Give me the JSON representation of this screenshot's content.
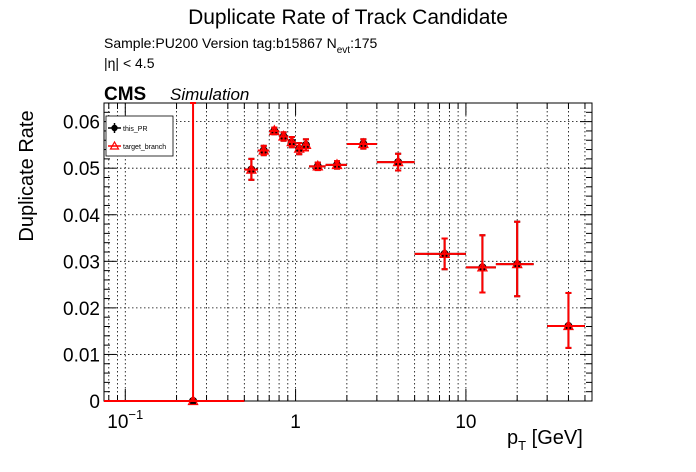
{
  "chart_data": {
    "type": "scatter",
    "title": "Duplicate Rate of Track Candidate",
    "subtitle": {
      "sample": "Sample:PU200   Version tag:b15867  N",
      "sub": "evt",
      "tail": ":175"
    },
    "eta_cut": "|η| < 4.5",
    "cms_label": "CMS",
    "cms_sublabel": "Simulation",
    "xlabel": {
      "main": "p",
      "sub": "T",
      "tail": " [GeV]"
    },
    "ylabel": "Duplicate Rate",
    "x_scale": "log",
    "xlim": [
      0.075,
      55
    ],
    "ylim": [
      0,
      0.064
    ],
    "grid": true,
    "legend_placement": "top-left",
    "x_ticks": [
      {
        "value": 0.1,
        "base": "10",
        "exp": "−1"
      },
      {
        "value": 1,
        "base": "1",
        "exp": ""
      },
      {
        "value": 10,
        "base": "10",
        "exp": ""
      }
    ],
    "y_ticks": [
      "0",
      "0.01",
      "0.02",
      "0.03",
      "0.04",
      "0.05",
      "0.06"
    ],
    "y_tick_values": [
      0,
      0.01,
      0.02,
      0.03,
      0.04,
      0.05,
      0.06
    ],
    "series": [
      {
        "name": "this_PR",
        "color": "#000000",
        "marker": "circle",
        "points": [
          {
            "x": 0.25,
            "xlo": 0.0,
            "xhi": 0.5,
            "y": 0.0,
            "ylo": 0.0,
            "yhi": 0.0
          },
          {
            "x": 0.55,
            "xlo": 0.5,
            "xhi": 0.6,
            "y": 0.0497,
            "ylo": 0.0475,
            "yhi": 0.052
          },
          {
            "x": 0.65,
            "xlo": 0.6,
            "xhi": 0.7,
            "y": 0.0538,
            "ylo": 0.0528,
            "yhi": 0.0548
          },
          {
            "x": 0.75,
            "xlo": 0.7,
            "xhi": 0.8,
            "y": 0.058,
            "ylo": 0.0573,
            "yhi": 0.0587
          },
          {
            "x": 0.85,
            "xlo": 0.8,
            "xhi": 0.9,
            "y": 0.0568,
            "ylo": 0.0559,
            "yhi": 0.0577
          },
          {
            "x": 0.95,
            "xlo": 0.9,
            "xhi": 1.0,
            "y": 0.0556,
            "ylo": 0.0545,
            "yhi": 0.0567
          },
          {
            "x": 1.05,
            "xlo": 1.0,
            "xhi": 1.1,
            "y": 0.0542,
            "ylo": 0.053,
            "yhi": 0.0554
          },
          {
            "x": 1.15,
            "xlo": 1.1,
            "xhi": 1.2,
            "y": 0.055,
            "ylo": 0.0538,
            "yhi": 0.0562
          },
          {
            "x": 1.35,
            "xlo": 1.2,
            "xhi": 1.5,
            "y": 0.0504,
            "ylo": 0.0496,
            "yhi": 0.0512
          },
          {
            "x": 1.75,
            "xlo": 1.5,
            "xhi": 2.0,
            "y": 0.0507,
            "ylo": 0.0499,
            "yhi": 0.0515
          },
          {
            "x": 2.5,
            "xlo": 2.0,
            "xhi": 3.0,
            "y": 0.0552,
            "ylo": 0.0542,
            "yhi": 0.0562
          },
          {
            "x": 4.0,
            "xlo": 3.0,
            "xhi": 5.0,
            "y": 0.0513,
            "ylo": 0.0495,
            "yhi": 0.0531
          },
          {
            "x": 7.5,
            "xlo": 5.0,
            "xhi": 10.0,
            "y": 0.0316,
            "ylo": 0.0283,
            "yhi": 0.0349
          },
          {
            "x": 12.5,
            "xlo": 10.0,
            "xhi": 15.0,
            "y": 0.0287,
            "ylo": 0.0233,
            "yhi": 0.0356
          },
          {
            "x": 20.0,
            "xlo": 15.0,
            "xhi": 25.0,
            "y": 0.0294,
            "ylo": 0.0225,
            "yhi": 0.0385
          },
          {
            "x": 40.0,
            "xlo": 30.0,
            "xhi": 50.0,
            "y": 0.0161,
            "ylo": 0.0114,
            "yhi": 0.0232
          }
        ]
      },
      {
        "name": "target_branch",
        "color": "#ff0000",
        "marker": "triangle",
        "points": [
          {
            "x": 0.25,
            "xlo": 0.0,
            "xhi": 0.5,
            "y": 0.0,
            "ylo": 0.0,
            "yhi": 0.064
          },
          {
            "x": 0.55,
            "xlo": 0.5,
            "xhi": 0.6,
            "y": 0.0497,
            "ylo": 0.0475,
            "yhi": 0.052
          },
          {
            "x": 0.65,
            "xlo": 0.6,
            "xhi": 0.7,
            "y": 0.0538,
            "ylo": 0.0528,
            "yhi": 0.0548
          },
          {
            "x": 0.75,
            "xlo": 0.7,
            "xhi": 0.8,
            "y": 0.058,
            "ylo": 0.0573,
            "yhi": 0.0587
          },
          {
            "x": 0.85,
            "xlo": 0.8,
            "xhi": 0.9,
            "y": 0.0568,
            "ylo": 0.0559,
            "yhi": 0.0577
          },
          {
            "x": 0.95,
            "xlo": 0.9,
            "xhi": 1.0,
            "y": 0.0556,
            "ylo": 0.0545,
            "yhi": 0.0567
          },
          {
            "x": 1.05,
            "xlo": 1.0,
            "xhi": 1.1,
            "y": 0.0542,
            "ylo": 0.053,
            "yhi": 0.0554
          },
          {
            "x": 1.15,
            "xlo": 1.1,
            "xhi": 1.2,
            "y": 0.055,
            "ylo": 0.0538,
            "yhi": 0.0562
          },
          {
            "x": 1.35,
            "xlo": 1.2,
            "xhi": 1.5,
            "y": 0.0504,
            "ylo": 0.0496,
            "yhi": 0.0512
          },
          {
            "x": 1.75,
            "xlo": 1.5,
            "xhi": 2.0,
            "y": 0.0507,
            "ylo": 0.0499,
            "yhi": 0.0515
          },
          {
            "x": 2.5,
            "xlo": 2.0,
            "xhi": 3.0,
            "y": 0.0552,
            "ylo": 0.0542,
            "yhi": 0.0562
          },
          {
            "x": 4.0,
            "xlo": 3.0,
            "xhi": 5.0,
            "y": 0.0513,
            "ylo": 0.0495,
            "yhi": 0.0531
          },
          {
            "x": 7.5,
            "xlo": 5.0,
            "xhi": 10.0,
            "y": 0.0316,
            "ylo": 0.0283,
            "yhi": 0.0349
          },
          {
            "x": 12.5,
            "xlo": 10.0,
            "xhi": 15.0,
            "y": 0.0287,
            "ylo": 0.0233,
            "yhi": 0.0356
          },
          {
            "x": 20.0,
            "xlo": 15.0,
            "xhi": 25.0,
            "y": 0.0294,
            "ylo": 0.0225,
            "yhi": 0.0385
          },
          {
            "x": 40.0,
            "xlo": 30.0,
            "xhi": 50.0,
            "y": 0.0161,
            "ylo": 0.0114,
            "yhi": 0.0232
          }
        ]
      }
    ]
  }
}
